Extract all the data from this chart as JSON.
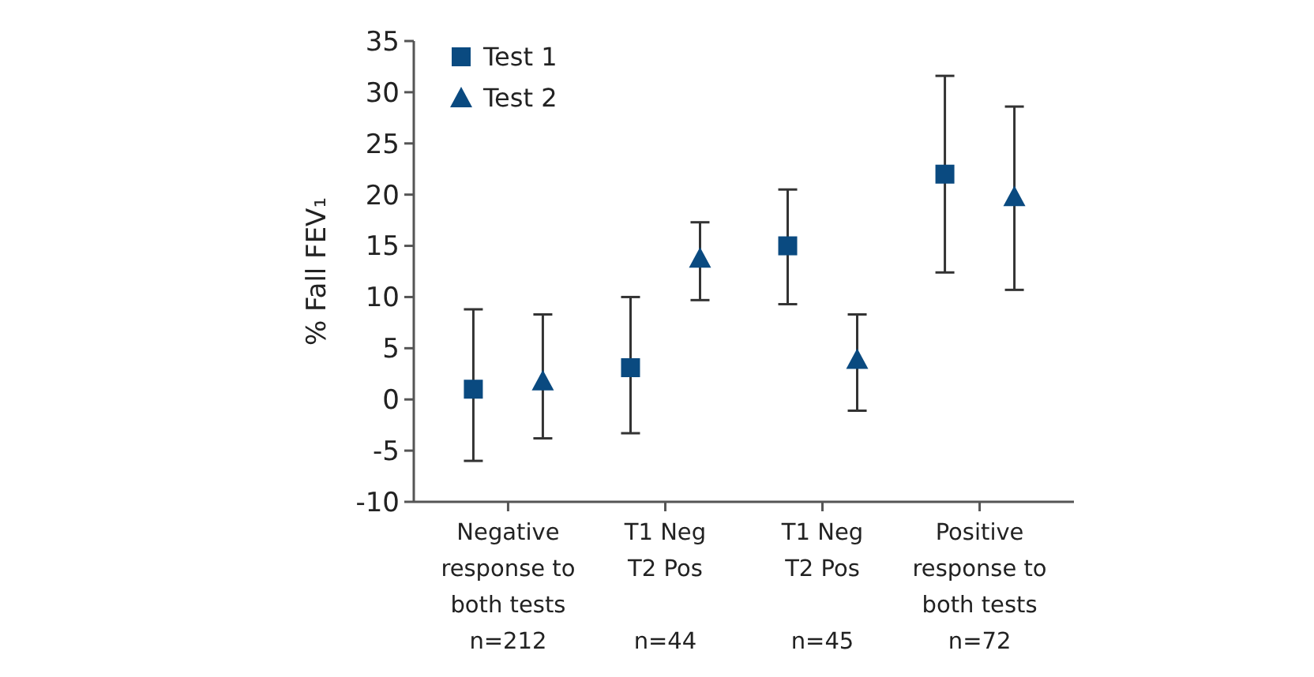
{
  "chart_data": {
    "type": "scatter",
    "ylabel": "% Fall FEV₁",
    "categories": [
      "Negative\nresponse to\nboth tests\nn=212",
      "T1 Neg\nT2 Pos\n\nn=44",
      "T1 Neg\nT2 Pos\n\nn=45",
      "Positive\nresponse to\nboth tests\nn=72"
    ],
    "series": [
      {
        "name": "Test 1",
        "color": "#0a4a80",
        "marker": "square",
        "values": [
          1.0,
          3.1,
          15.0,
          22.0
        ],
        "errors": [
          [
            -6.0,
            8.8
          ],
          [
            -3.3,
            10.0
          ],
          [
            9.3,
            20.5
          ],
          [
            12.4,
            31.6
          ]
        ]
      },
      {
        "name": "Test 2",
        "color": "#0a4a80",
        "marker": "triangle",
        "values": [
          1.8,
          13.8,
          3.9,
          19.8
        ],
        "errors": [
          [
            -3.8,
            8.3
          ],
          [
            9.7,
            17.3
          ],
          [
            -1.1,
            8.3
          ],
          [
            10.7,
            28.6
          ]
        ]
      }
    ],
    "ylim": [
      -10,
      35
    ],
    "yticks": [
      -10,
      -5,
      0,
      5,
      10,
      15,
      20,
      25,
      30,
      35
    ],
    "grid": false,
    "legend": "top left"
  }
}
